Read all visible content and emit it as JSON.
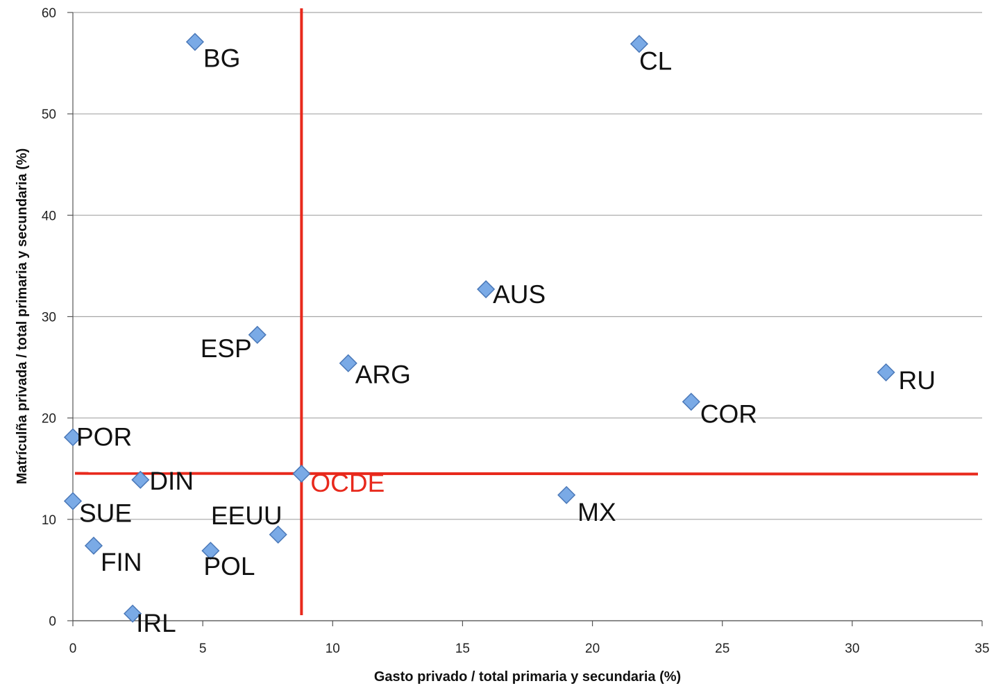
{
  "chart_data": {
    "type": "scatter",
    "title": "",
    "xlabel": "Gasto privado / total primaria y secundaria (%)",
    "ylabel": "Matrículña privada / total primaria y secundaria (%)",
    "xlim": [
      0,
      35
    ],
    "ylim": [
      0,
      60
    ],
    "x_ticks": [
      0,
      5,
      10,
      15,
      20,
      25,
      30,
      35
    ],
    "y_ticks": [
      0,
      10,
      20,
      30,
      40,
      50,
      60
    ],
    "grid": "horizontal",
    "points": [
      {
        "label": "BG",
        "x": 4.7,
        "y": 57.1
      },
      {
        "label": "CL",
        "x": 21.8,
        "y": 56.9
      },
      {
        "label": "AUS",
        "x": 15.9,
        "y": 32.7
      },
      {
        "label": "ESP",
        "x": 7.1,
        "y": 28.2
      },
      {
        "label": "ARG",
        "x": 10.6,
        "y": 25.4
      },
      {
        "label": "RU",
        "x": 31.3,
        "y": 24.5
      },
      {
        "label": "COR",
        "x": 23.8,
        "y": 21.6
      },
      {
        "label": "POR",
        "x": 0.0,
        "y": 18.1
      },
      {
        "label": "OCDE",
        "x": 8.8,
        "y": 14.5,
        "highlight": true
      },
      {
        "label": "DIN",
        "x": 2.6,
        "y": 13.9
      },
      {
        "label": "MX",
        "x": 19.0,
        "y": 12.4
      },
      {
        "label": "SUE",
        "x": 0.0,
        "y": 11.8
      },
      {
        "label": "EEUU",
        "x": 7.9,
        "y": 8.5
      },
      {
        "label": "FIN",
        "x": 0.8,
        "y": 7.4
      },
      {
        "label": "POL",
        "x": 5.3,
        "y": 6.9
      },
      {
        "label": "IRL",
        "x": 2.3,
        "y": 0.7
      }
    ],
    "reference_lines": [
      {
        "orientation": "vertical",
        "value": 8.8
      },
      {
        "orientation": "horizontal",
        "value": 14.5
      }
    ],
    "colors": {
      "marker_fill": "#7aaae6",
      "marker_stroke": "#4a78b8",
      "reference_line": "#e8291c",
      "highlight_label": "#e8291c",
      "grid": "#a6a6a6"
    }
  }
}
